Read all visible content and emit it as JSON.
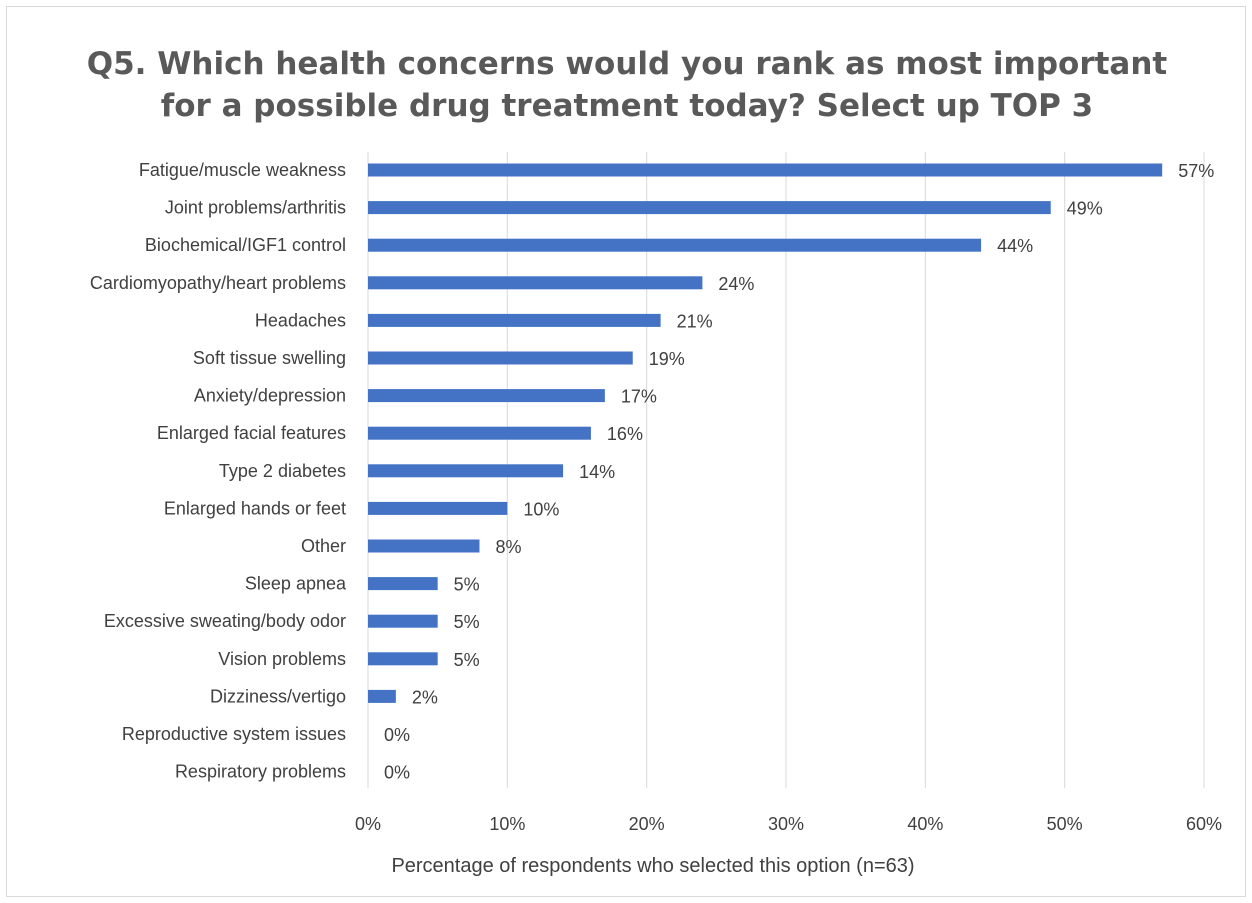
{
  "chart_data": {
    "type": "bar",
    "orientation": "horizontal",
    "title_lines": [
      "Q5. Which health concerns would you rank as most important",
      "for a possible drug treatment today? Select up TOP 3"
    ],
    "xlabel": "Percentage of respondents who selected this option (n=63)",
    "ylabel": "",
    "xlim": [
      0,
      60
    ],
    "x_ticks": [
      0,
      10,
      20,
      30,
      40,
      50,
      60
    ],
    "x_tick_labels": [
      "0%",
      "10%",
      "20%",
      "30%",
      "40%",
      "50%",
      "60%"
    ],
    "grid": true,
    "bar_color": "#4472c4",
    "categories": [
      "Fatigue/muscle weakness",
      "Joint problems/arthritis",
      "Biochemical/IGF1 control",
      "Cardiomyopathy/heart problems",
      "Headaches",
      "Soft tissue swelling",
      "Anxiety/depression",
      "Enlarged facial features",
      "Type 2 diabetes",
      "Enlarged hands or feet",
      "Other",
      "Sleep apnea",
      "Excessive sweating/body odor",
      "Vision problems",
      "Dizziness/vertigo",
      "Reproductive system issues",
      "Respiratory problems"
    ],
    "values": [
      57,
      49,
      44,
      24,
      21,
      19,
      17,
      16,
      14,
      10,
      8,
      5,
      5,
      5,
      2,
      0,
      0
    ],
    "data_labels": [
      "57%",
      "49%",
      "44%",
      "24%",
      "21%",
      "19%",
      "17%",
      "16%",
      "14%",
      "10%",
      "8%",
      "5%",
      "5%",
      "5%",
      "2%",
      "0%",
      "0%"
    ]
  }
}
